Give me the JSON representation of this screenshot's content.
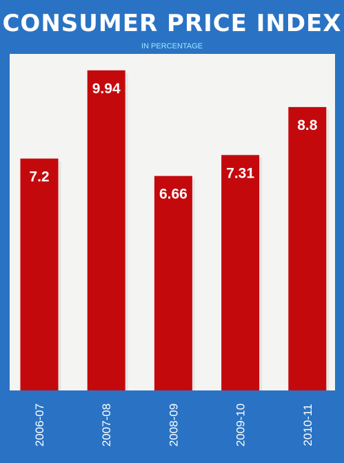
{
  "header": {
    "title": "CONSUMER PRICE INDEX",
    "subtitle": "IN PERCENTAGE"
  },
  "colors": {
    "background": "#2a73c4",
    "plot_area": "#f4f4f2",
    "bar": "#c4090d",
    "text": "#ffffff",
    "subtitle": "#9fe7ff"
  },
  "chart_data": {
    "type": "bar",
    "title": "CONSUMER PRICE INDEX",
    "subtitle": "IN PERCENTAGE",
    "categories": [
      "2006-07",
      "2007-08",
      "2008-09",
      "2009-10",
      "2010-11"
    ],
    "values": [
      7.2,
      9.94,
      6.66,
      7.31,
      8.8
    ],
    "value_labels": [
      "7.2",
      "9.94",
      "6.66",
      "7.31",
      "8.8"
    ],
    "xlabel": "",
    "ylabel": "",
    "ylim": [
      0,
      10.3
    ],
    "grid": false,
    "legend": "none",
    "tick_label_orientation": "vertical"
  }
}
